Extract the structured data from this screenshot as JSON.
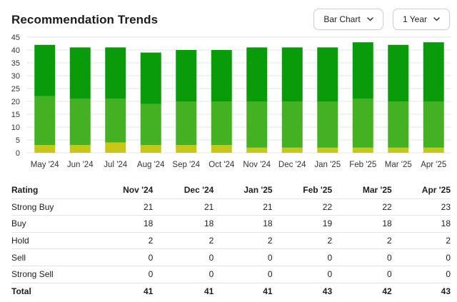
{
  "header": {
    "title": "Recommendation Trends",
    "chart_type_selected": "Bar Chart",
    "period_selected": "1 Year",
    "chevron_icon": "chevron-down-icon"
  },
  "colors": {
    "strong_buy": "#0a9b0a",
    "buy": "#44b122",
    "hold": "#c8c814",
    "sell": "#e07a1f",
    "strong_sell": "#d42a2a",
    "grid": "#e6e6e6",
    "axis_text": "#333333"
  },
  "chart_data": {
    "type": "bar",
    "stacked": true,
    "categories": [
      "May '24",
      "Jun '24",
      "Jul '24",
      "Aug '24",
      "Sep '24",
      "Oct '24",
      "Nov '24",
      "Dec '24",
      "Jan '25",
      "Feb '25",
      "Mar '25",
      "Apr '25"
    ],
    "series": [
      {
        "key": "strong_sell",
        "values": [
          0,
          0,
          0,
          0,
          0,
          0,
          0,
          0,
          0,
          0,
          0,
          0
        ]
      },
      {
        "key": "sell",
        "values": [
          0,
          0,
          0,
          0,
          0,
          0,
          0,
          0,
          0,
          0,
          0,
          0
        ]
      },
      {
        "key": "hold",
        "values": [
          3,
          3,
          4,
          3,
          3,
          3,
          2,
          2,
          2,
          2,
          2,
          2
        ]
      },
      {
        "key": "buy",
        "values": [
          19,
          18,
          17,
          16,
          17,
          17,
          18,
          18,
          18,
          19,
          18,
          18
        ]
      },
      {
        "key": "strong_buy",
        "values": [
          20,
          20,
          20,
          20,
          20,
          20,
          21,
          21,
          21,
          22,
          22,
          23
        ]
      }
    ],
    "ylim": [
      0,
      45
    ],
    "yticks": [
      0,
      5,
      10,
      15,
      20,
      25,
      30,
      35,
      40,
      45
    ],
    "grid": true,
    "legend": "none"
  },
  "table": {
    "headers": [
      "Rating",
      "Nov '24",
      "Dec '24",
      "Jan '25",
      "Feb '25",
      "Mar '25",
      "Apr '25"
    ],
    "rows": [
      {
        "label": "Strong Buy",
        "values": [
          "21",
          "21",
          "21",
          "22",
          "22",
          "23"
        ]
      },
      {
        "label": "Buy",
        "values": [
          "18",
          "18",
          "18",
          "19",
          "18",
          "18"
        ]
      },
      {
        "label": "Hold",
        "values": [
          "2",
          "2",
          "2",
          "2",
          "2",
          "2"
        ]
      },
      {
        "label": "Sell",
        "values": [
          "0",
          "0",
          "0",
          "0",
          "0",
          "0"
        ]
      },
      {
        "label": "Strong Sell",
        "values": [
          "0",
          "0",
          "0",
          "0",
          "0",
          "0"
        ]
      }
    ],
    "total": {
      "label": "Total",
      "values": [
        "41",
        "41",
        "41",
        "43",
        "42",
        "43"
      ]
    }
  }
}
